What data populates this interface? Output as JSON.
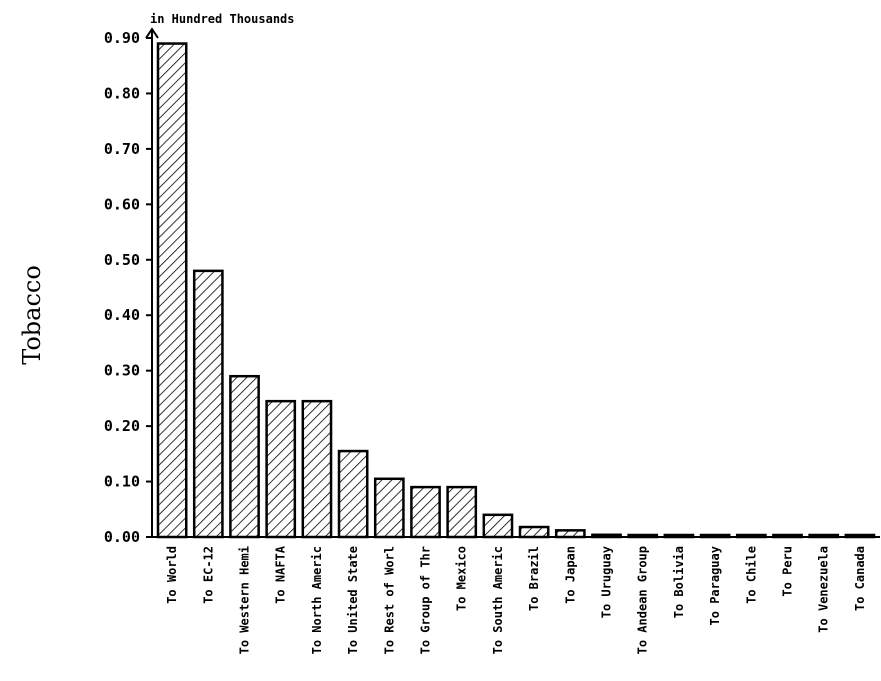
{
  "chart_data": {
    "type": "bar",
    "title": "",
    "ylabel": "Tobacco",
    "unit_label": "in Hundred Thousands",
    "xlabel": "",
    "categories": [
      "To World",
      "To EC-12",
      "To Western Hemi",
      "To NAFTA",
      "To North Americ",
      "To United State",
      "To Rest of Worl",
      "To Group of Thr",
      "To Mexico",
      "To South Americ",
      "To Brazil",
      "To Japan",
      "To Uruguay",
      "To Andean Group",
      "To Bolivia",
      "To Paraguay",
      "To Chile",
      "To Peru",
      "To Venezuela",
      "To Canada"
    ],
    "values": [
      0.89,
      0.48,
      0.29,
      0.245,
      0.245,
      0.155,
      0.105,
      0.09,
      0.09,
      0.04,
      0.018,
      0.012,
      0.004,
      0.003,
      0.002,
      0.002,
      0.002,
      0.002,
      0.002,
      0.002
    ],
    "ylim": [
      0,
      0.9
    ],
    "yticks": [
      "0.00",
      "0.10",
      "0.20",
      "0.30",
      "0.40",
      "0.50",
      "0.60",
      "0.70",
      "0.80",
      "0.90"
    ],
    "grid": false,
    "bar_color": "#ffffff",
    "hatch_color": "#000000"
  }
}
